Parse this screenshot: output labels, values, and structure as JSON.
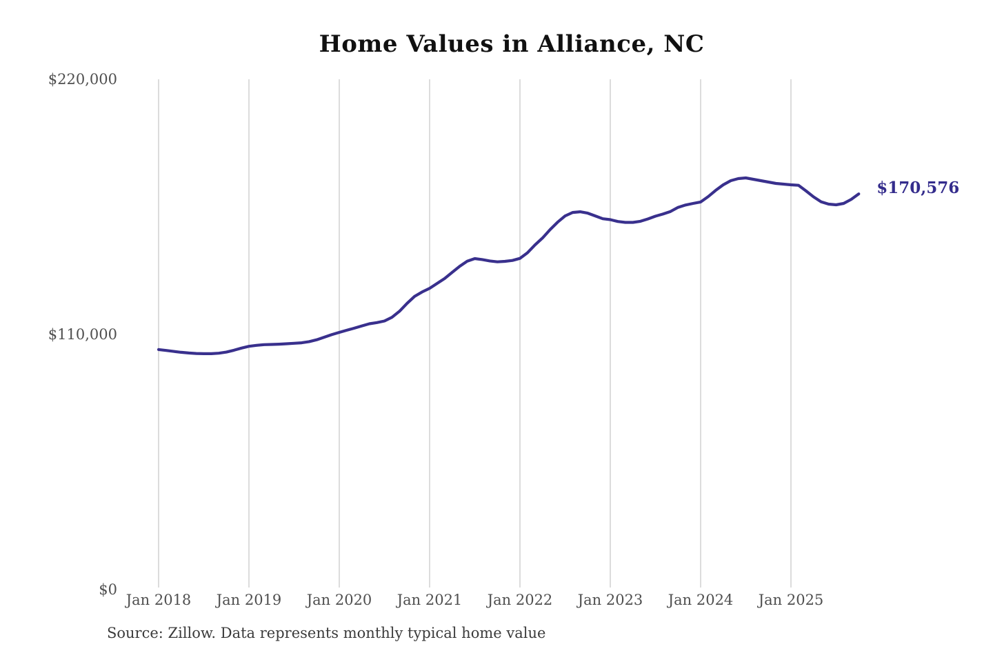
{
  "chart_data": {
    "type": "line",
    "title": "Home Values in Alliance, NC",
    "source_note": "Source: Zillow. Data represents monthly typical home value",
    "x_start": "Jan 2018",
    "x_interval": "monthly",
    "x_ticks": [
      "Jan 2018",
      "Jan 2019",
      "Jan 2020",
      "Jan 2021",
      "Jan 2022",
      "Jan 2023",
      "Jan 2024",
      "Jan 2025"
    ],
    "y_ticks": [
      {
        "label": "$0",
        "value": 0
      },
      {
        "label": "$110,000",
        "value": 110000
      },
      {
        "label": "$220,000",
        "value": 220000
      }
    ],
    "ylim": [
      0,
      220000
    ],
    "grid": "vertical-only",
    "legend": "none",
    "end_label": "$170,576",
    "last_value": 170576,
    "series": [
      {
        "name": "Typical home value",
        "values": [
          103500,
          103100,
          102700,
          102300,
          102000,
          101800,
          101700,
          101700,
          101900,
          102400,
          103200,
          104100,
          104900,
          105300,
          105600,
          105700,
          105800,
          106000,
          106200,
          106400,
          106900,
          107700,
          108800,
          109900,
          110900,
          111800,
          112700,
          113700,
          114600,
          115100,
          115800,
          117400,
          120000,
          123400,
          126400,
          128300,
          129900,
          132000,
          134100,
          136800,
          139400,
          141600,
          142700,
          142300,
          141700,
          141300,
          141500,
          141900,
          142800,
          145200,
          148600,
          151600,
          155200,
          158400,
          161100,
          162600,
          162900,
          162300,
          161100,
          159900,
          159500,
          158700,
          158300,
          158300,
          158800,
          159800,
          161000,
          161900,
          163000,
          164800,
          165800,
          166500,
          167100,
          169400,
          172100,
          174500,
          176300,
          177200,
          177500,
          176900,
          176300,
          175700,
          175100,
          174800,
          174500,
          174300,
          171900,
          169300,
          167200,
          166200,
          165900,
          166500,
          168200,
          170576
        ]
      }
    ],
    "colors": {
      "line": "#39308d",
      "grid": "#c9c9c9",
      "axis_text": "#4f4f4f",
      "title_text": "#111111",
      "end_label_text": "#342c8c",
      "source_text": "#3b3b3b",
      "background": "#ffffff"
    }
  }
}
